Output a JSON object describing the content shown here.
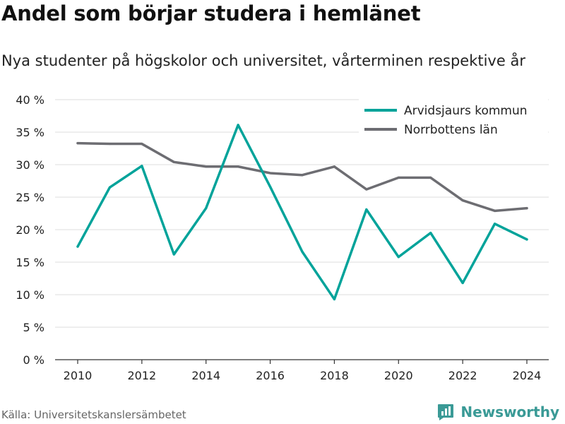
{
  "title": "Andel som börjar studera i hemlänet",
  "subtitle": "Nya studenter på högskolor och universitet, vårterminen respektive år",
  "source": "Källa: Universitetskanslersämbetet",
  "brand": {
    "name": "Newsworthy",
    "icon": "newsworthy-logo-icon",
    "color": "#3a9a96"
  },
  "chart_data": {
    "type": "line",
    "x": [
      2010,
      2011,
      2012,
      2013,
      2014,
      2015,
      2016,
      2017,
      2018,
      2019,
      2020,
      2021,
      2022,
      2023,
      2024
    ],
    "series": [
      {
        "name": "Arvidsjaurs kommun",
        "color": "#00a39a",
        "values": [
          17.4,
          26.5,
          29.8,
          16.2,
          23.3,
          36.1,
          26.6,
          16.6,
          9.3,
          23.1,
          15.8,
          19.5,
          11.8,
          20.9,
          18.5
        ]
      },
      {
        "name": "Norrbottens län",
        "color": "#6d6d72",
        "values": [
          33.3,
          33.2,
          33.2,
          30.4,
          29.7,
          29.7,
          28.7,
          28.4,
          29.7,
          26.2,
          28.0,
          28.0,
          24.5,
          22.9,
          23.3
        ]
      }
    ],
    "ylim": [
      0,
      40
    ],
    "yticks": [
      0,
      5,
      10,
      15,
      20,
      25,
      30,
      35,
      40
    ],
    "ytick_labels": [
      "0 %",
      "5 %",
      "10 %",
      "15 %",
      "20 %",
      "25 %",
      "30 %",
      "35 %",
      "40 %"
    ],
    "xticks": [
      2010,
      2012,
      2014,
      2016,
      2018,
      2020,
      2022,
      2024
    ],
    "xtick_labels": [
      "2010",
      "2012",
      "2014",
      "2016",
      "2018",
      "2020",
      "2022",
      "2024"
    ],
    "xlabel": "",
    "ylabel": "",
    "grid": true,
    "legend_position": "top-right"
  }
}
